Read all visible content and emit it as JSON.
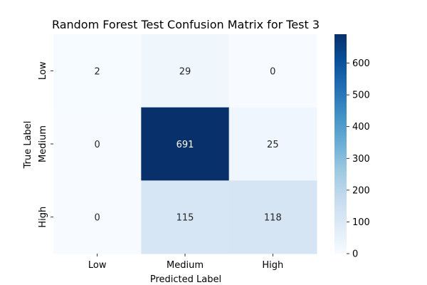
{
  "chart_data": {
    "type": "heatmap",
    "title": "Random Forest Test Confusion Matrix for Test 3",
    "xlabel": "Predicted Label",
    "ylabel": "True Label",
    "x_categories": [
      "Low",
      "Medium",
      "High"
    ],
    "y_categories": [
      "Low",
      "Medium",
      "High"
    ],
    "values": [
      [
        2,
        29,
        0
      ],
      [
        0,
        691,
        25
      ],
      [
        0,
        115,
        118
      ]
    ],
    "colorbar": {
      "range": [
        0,
        691
      ],
      "ticks": [
        "0",
        "100",
        "200",
        "300",
        "400",
        "500",
        "600"
      ],
      "colormap": "Blues"
    },
    "colors": {
      "low": "#f7fbff",
      "high": "#08306b",
      "dark_text": "#262626",
      "light_text": "#ffffff"
    }
  }
}
